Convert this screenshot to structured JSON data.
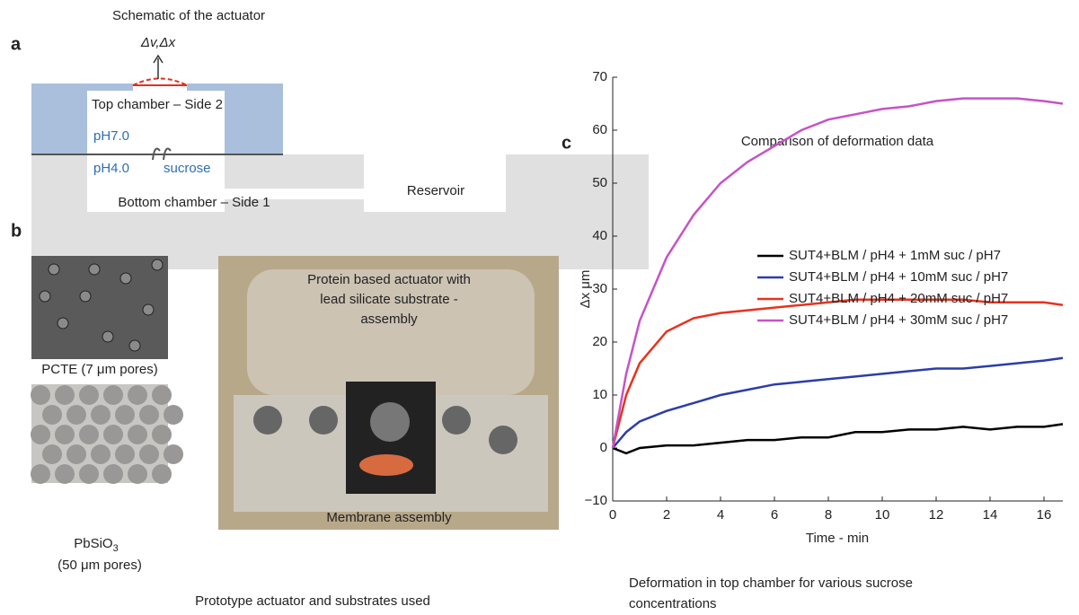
{
  "panel_a": {
    "label": "a",
    "title": "Schematic of the actuator",
    "arrow_label": "Δv,Δx",
    "top_chamber": "Top chamber – Side 2",
    "ph_top": "pH7.0",
    "ph_bottom": "pH4.0",
    "sucrose": "sucrose",
    "bottom_chamber": "Bottom chamber – Side 1",
    "reservoir": "Reservoir"
  },
  "panel_b": {
    "label": "b",
    "pcte_caption": "PCTE (7 μm pores)",
    "pbsio_caption": "PbSiO",
    "pbsio_subscript": "3",
    "pbsio_pores": "(50 μm pores)",
    "photo_top_text": [
      "Protein based actuator with",
      "lead silicate substrate -",
      "assembly"
    ],
    "photo_bottom_text": "Membrane assembly",
    "caption": "Prototype actuator and substrates used"
  },
  "panel_c": {
    "label": "c",
    "caption": [
      "Deformation in top chamber for various sucrose",
      "concentrations"
    ]
  },
  "chart_data": {
    "type": "line",
    "title": "Comparison of deformation data",
    "xlabel": "Time - min",
    "ylabel": "Δx μm",
    "x": [
      0,
      0.5,
      1,
      2,
      3,
      4,
      5,
      6,
      7,
      8,
      9,
      10,
      11,
      12,
      13,
      14,
      15,
      16,
      16.7
    ],
    "series": [
      {
        "name": "SUT4+BLM / pH4 + 1mM suc / pH7",
        "color": "#000000",
        "values": [
          0,
          -1,
          0,
          0.5,
          0.5,
          1,
          1.5,
          1.5,
          2,
          2,
          3,
          3,
          3.5,
          3.5,
          4,
          3.5,
          4,
          4,
          4.5
        ]
      },
      {
        "name": "SUT4+BLM / pH4 + 10mM suc / pH7",
        "color": "#2b3ea8",
        "values": [
          0,
          3,
          5,
          7,
          8.5,
          10,
          11,
          12,
          12.5,
          13,
          13.5,
          14,
          14.5,
          15,
          15,
          15.5,
          16,
          16.5,
          17
        ]
      },
      {
        "name": "SUT4+BLM / pH4 + 20mM suc / pH7",
        "color": "#e8321e",
        "values": [
          0,
          10,
          16,
          22,
          24.5,
          25.5,
          26,
          26.5,
          27,
          27.5,
          28,
          28,
          28,
          28,
          28,
          27.5,
          27.5,
          27.5,
          27
        ]
      },
      {
        "name": "SUT4+BLM / pH4 + 30mM suc / pH7",
        "color": "#c653c6",
        "values": [
          0,
          14,
          24,
          36,
          44,
          50,
          54,
          57,
          60,
          62,
          63,
          64,
          64.5,
          65.5,
          66,
          66,
          66,
          65.5,
          65
        ]
      }
    ],
    "xlim": [
      0,
      16.7
    ],
    "ylim": [
      -10,
      70
    ],
    "xticks": [
      0,
      2,
      4,
      6,
      8,
      10,
      12,
      14,
      16
    ],
    "yticks": [
      {
        "value": -10,
        "label": "−10"
      },
      0,
      10,
      20,
      30,
      40,
      50,
      60,
      70
    ],
    "legend": "upper right"
  }
}
